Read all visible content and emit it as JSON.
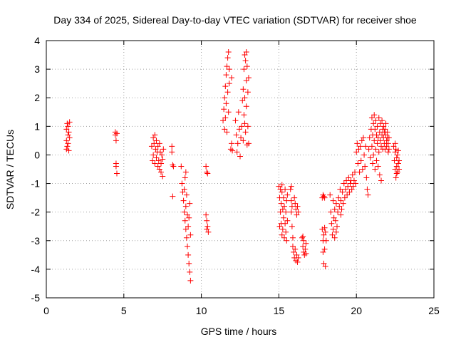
{
  "chart_data": {
    "type": "scatter",
    "title": "Day 334 of 2025, Sidereal Day-to-day VTEC variation (SDTVAR) for receiver shoe",
    "xlabel": "GPS time / hours",
    "ylabel": "SDTVAR / TECUs",
    "xlim": [
      0,
      25
    ],
    "ylim": [
      -5,
      4
    ],
    "xticks": [
      0,
      5,
      10,
      15,
      20,
      25
    ],
    "yticks": [
      -5,
      -4,
      -3,
      -2,
      -1,
      0,
      1,
      2,
      3,
      4
    ],
    "grid": true,
    "marker": "+",
    "color": "#ff0000",
    "series": [
      {
        "name": "SDTVAR",
        "points": [
          [
            1.3,
            0.2
          ],
          [
            1.3,
            0.5
          ],
          [
            1.3,
            0.9
          ],
          [
            1.35,
            1.1
          ],
          [
            1.35,
            0.3
          ],
          [
            1.4,
            0.7
          ],
          [
            1.4,
            1.0
          ],
          [
            1.4,
            0.4
          ],
          [
            1.45,
            0.8
          ],
          [
            1.45,
            0.15
          ],
          [
            1.5,
            0.6
          ],
          [
            1.5,
            1.15
          ],
          [
            4.45,
            0.8
          ],
          [
            4.45,
            0.7
          ],
          [
            4.5,
            0.5
          ],
          [
            4.5,
            -0.3
          ],
          [
            4.5,
            -0.4
          ],
          [
            4.55,
            -0.65
          ],
          [
            4.55,
            0.75
          ],
          [
            6.8,
            0.3
          ],
          [
            6.85,
            -0.2
          ],
          [
            6.9,
            0.6
          ],
          [
            6.9,
            0.0
          ],
          [
            6.95,
            0.4
          ],
          [
            7.0,
            -0.3
          ],
          [
            7.0,
            0.7
          ],
          [
            7.05,
            0.2
          ],
          [
            7.1,
            -0.1
          ],
          [
            7.1,
            0.5
          ],
          [
            7.15,
            0.1
          ],
          [
            7.2,
            -0.4
          ],
          [
            7.2,
            0.3
          ],
          [
            7.25,
            -0.2
          ],
          [
            7.3,
            0.4
          ],
          [
            7.3,
            -0.5
          ],
          [
            7.35,
            0.1
          ],
          [
            7.4,
            -0.6
          ],
          [
            7.4,
            -0.3
          ],
          [
            7.45,
            0.0
          ],
          [
            7.5,
            -0.75
          ],
          [
            7.5,
            -0.15
          ],
          [
            7.55,
            0.2
          ],
          [
            8.1,
            0.3
          ],
          [
            8.1,
            0.1
          ],
          [
            8.15,
            -0.35
          ],
          [
            8.2,
            -0.4
          ],
          [
            8.15,
            -1.45
          ],
          [
            8.7,
            -0.4
          ],
          [
            8.75,
            -1.0
          ],
          [
            8.8,
            -1.3
          ],
          [
            8.85,
            -1.6
          ],
          [
            8.9,
            -2.0
          ],
          [
            8.9,
            -1.2
          ],
          [
            8.95,
            -2.3
          ],
          [
            9.0,
            -1.8
          ],
          [
            9.0,
            -2.6
          ],
          [
            9.05,
            -1.4
          ],
          [
            9.05,
            -2.9
          ],
          [
            9.1,
            -2.1
          ],
          [
            9.1,
            -3.2
          ],
          [
            9.15,
            -2.5
          ],
          [
            9.15,
            -3.5
          ],
          [
            9.2,
            -3.8
          ],
          [
            9.2,
            -2.2
          ],
          [
            9.25,
            -4.1
          ],
          [
            9.25,
            -1.7
          ],
          [
            9.3,
            -4.4
          ],
          [
            9.3,
            -2.8
          ],
          [
            9.0,
            -0.6
          ],
          [
            8.95,
            -0.8
          ],
          [
            10.3,
            -0.4
          ],
          [
            10.35,
            -0.6
          ],
          [
            10.4,
            -0.65
          ],
          [
            10.3,
            -2.1
          ],
          [
            10.35,
            -2.3
          ],
          [
            10.4,
            -2.5
          ],
          [
            10.45,
            -2.7
          ],
          [
            10.35,
            -2.6
          ],
          [
            11.4,
            1.2
          ],
          [
            11.45,
            1.6
          ],
          [
            11.5,
            2.0
          ],
          [
            11.5,
            0.9
          ],
          [
            11.55,
            2.4
          ],
          [
            11.55,
            1.3
          ],
          [
            11.6,
            2.8
          ],
          [
            11.6,
            1.8
          ],
          [
            11.65,
            3.1
          ],
          [
            11.65,
            0.8
          ],
          [
            11.7,
            3.4
          ],
          [
            11.7,
            2.2
          ],
          [
            11.75,
            3.6
          ],
          [
            11.75,
            1.5
          ],
          [
            11.8,
            3.0
          ],
          [
            11.8,
            2.5
          ],
          [
            11.9,
            0.2
          ],
          [
            11.95,
            0.4
          ],
          [
            12.0,
            0.15
          ],
          [
            11.95,
            2.7
          ],
          [
            12.2,
            1.2
          ],
          [
            12.25,
            0.7
          ],
          [
            12.3,
            0.1
          ],
          [
            12.35,
            0.4
          ],
          [
            12.4,
            1.5
          ],
          [
            12.45,
            0.9
          ],
          [
            12.5,
            -0.05
          ],
          [
            12.55,
            0.6
          ],
          [
            12.6,
            1.0
          ],
          [
            12.65,
            1.9
          ],
          [
            12.7,
            2.3
          ],
          [
            12.7,
            0.5
          ],
          [
            12.75,
            3.0
          ],
          [
            12.75,
            1.4
          ],
          [
            12.8,
            3.5
          ],
          [
            12.8,
            2.0
          ],
          [
            12.85,
            3.3
          ],
          [
            12.85,
            0.8
          ],
          [
            12.9,
            2.6
          ],
          [
            12.9,
            1.7
          ],
          [
            12.95,
            3.1
          ],
          [
            12.95,
            0.35
          ],
          [
            13.0,
            2.2
          ],
          [
            13.0,
            1.0
          ],
          [
            13.05,
            2.7
          ],
          [
            13.05,
            0.4
          ],
          [
            12.9,
            3.6
          ],
          [
            12.8,
            1.1
          ],
          [
            15.0,
            -1.1
          ],
          [
            15.05,
            -1.5
          ],
          [
            15.1,
            -2.0
          ],
          [
            15.1,
            -1.2
          ],
          [
            15.15,
            -2.4
          ],
          [
            15.15,
            -1.7
          ],
          [
            15.2,
            -2.8
          ],
          [
            15.2,
            -1.3
          ],
          [
            15.25,
            -1.9
          ],
          [
            15.25,
            -2.6
          ],
          [
            15.3,
            -2.2
          ],
          [
            15.3,
            -1.5
          ],
          [
            15.35,
            -2.9
          ],
          [
            15.35,
            -1.8
          ],
          [
            15.4,
            -2.4
          ],
          [
            15.4,
            -1.2
          ],
          [
            15.45,
            -2.7
          ],
          [
            15.45,
            -2.0
          ],
          [
            15.5,
            -1.6
          ],
          [
            15.5,
            -3.0
          ],
          [
            15.55,
            -2.3
          ],
          [
            15.55,
            -1.4
          ],
          [
            15.05,
            -2.5
          ],
          [
            15.2,
            -1.05
          ],
          [
            15.75,
            -1.2
          ],
          [
            15.8,
            -1.6
          ],
          [
            15.8,
            -2.0
          ],
          [
            15.85,
            -2.5
          ],
          [
            15.85,
            -1.8
          ],
          [
            15.9,
            -2.9
          ],
          [
            15.9,
            -3.2
          ],
          [
            15.95,
            -3.4
          ],
          [
            16.0,
            -3.6
          ],
          [
            16.0,
            -1.5
          ],
          [
            16.05,
            -3.3
          ],
          [
            16.05,
            -1.7
          ],
          [
            16.1,
            -3.7
          ],
          [
            16.1,
            -1.9
          ],
          [
            16.15,
            -3.5
          ],
          [
            16.15,
            -2.1
          ],
          [
            16.2,
            -3.75
          ],
          [
            16.2,
            -1.8
          ],
          [
            16.25,
            -3.6
          ],
          [
            16.25,
            -2.0
          ],
          [
            15.8,
            -1.1
          ],
          [
            16.5,
            -2.9
          ],
          [
            16.55,
            -3.2
          ],
          [
            16.6,
            -3.4
          ],
          [
            16.6,
            -3.0
          ],
          [
            16.65,
            -3.5
          ],
          [
            16.7,
            -3.3
          ],
          [
            16.75,
            -3.1
          ],
          [
            16.75,
            -3.45
          ],
          [
            16.55,
            -2.85
          ],
          [
            17.8,
            -1.5
          ],
          [
            17.85,
            -1.4
          ],
          [
            17.9,
            -1.45
          ],
          [
            17.95,
            -1.5
          ],
          [
            17.8,
            -2.6
          ],
          [
            17.85,
            -3.0
          ],
          [
            17.85,
            -3.4
          ],
          [
            17.9,
            -2.8
          ],
          [
            17.9,
            -3.8
          ],
          [
            17.95,
            -3.3
          ],
          [
            18.0,
            -2.7
          ],
          [
            18.0,
            -3.9
          ],
          [
            18.05,
            -3.0
          ],
          [
            17.95,
            -2.55
          ],
          [
            18.3,
            -1.4
          ],
          [
            18.35,
            -2.0
          ],
          [
            18.4,
            -2.4
          ],
          [
            18.45,
            -2.8
          ],
          [
            18.5,
            -2.6
          ],
          [
            18.55,
            -2.2
          ],
          [
            18.6,
            -2.9
          ],
          [
            18.6,
            -1.9
          ],
          [
            18.65,
            -2.3
          ],
          [
            18.7,
            -1.7
          ],
          [
            18.75,
            -2.5
          ],
          [
            18.8,
            -2.0
          ],
          [
            18.85,
            -1.5
          ],
          [
            18.9,
            -1.8
          ],
          [
            18.95,
            -1.2
          ],
          [
            19.0,
            -1.6
          ],
          [
            19.05,
            -1.9
          ],
          [
            19.1,
            -1.3
          ],
          [
            19.15,
            -1.7
          ],
          [
            19.2,
            -1.0
          ],
          [
            19.25,
            -1.5
          ],
          [
            19.3,
            -1.2
          ],
          [
            19.35,
            -0.9
          ],
          [
            19.4,
            -1.4
          ],
          [
            19.45,
            -1.1
          ],
          [
            19.5,
            -0.8
          ],
          [
            19.55,
            -1.3
          ],
          [
            19.6,
            -1.0
          ],
          [
            19.65,
            -0.9
          ],
          [
            19.7,
            -1.2
          ],
          [
            19.75,
            -0.7
          ],
          [
            19.8,
            -1.1
          ],
          [
            19.85,
            -0.9
          ],
          [
            19.9,
            -0.6
          ],
          [
            19.95,
            -1.0
          ],
          [
            18.5,
            -1.6
          ],
          [
            18.7,
            -2.7
          ],
          [
            19.0,
            -2.1
          ],
          [
            20.0,
            0.1
          ],
          [
            20.05,
            0.4
          ],
          [
            20.1,
            -0.3
          ],
          [
            20.15,
            0.2
          ],
          [
            20.2,
            -0.6
          ],
          [
            20.25,
            0.3
          ],
          [
            20.3,
            -0.2
          ],
          [
            20.35,
            0.5
          ],
          [
            20.4,
            -0.5
          ],
          [
            20.45,
            0.6
          ],
          [
            20.5,
            0.0
          ],
          [
            20.55,
            -0.4
          ],
          [
            20.6,
            0.3
          ],
          [
            20.65,
            -0.8
          ],
          [
            20.7,
            -1.2
          ],
          [
            20.75,
            -1.4
          ],
          [
            20.8,
            0.2
          ],
          [
            20.85,
            0.6
          ],
          [
            20.9,
            -0.1
          ],
          [
            20.95,
            0.9
          ],
          [
            21.0,
            0.3
          ],
          [
            21.0,
            1.3
          ],
          [
            21.05,
            -0.3
          ],
          [
            21.05,
            0.7
          ],
          [
            21.1,
            1.1
          ],
          [
            21.1,
            0.0
          ],
          [
            21.15,
            1.4
          ],
          [
            21.15,
            0.5
          ],
          [
            21.2,
            0.9
          ],
          [
            21.2,
            -0.5
          ],
          [
            21.25,
            1.2
          ],
          [
            21.25,
            0.2
          ],
          [
            21.3,
            0.7
          ],
          [
            21.3,
            -0.2
          ],
          [
            21.35,
            1.0
          ],
          [
            21.35,
            0.4
          ],
          [
            21.4,
            0.6
          ],
          [
            21.4,
            -0.4
          ],
          [
            21.45,
            1.3
          ],
          [
            21.45,
            0.1
          ],
          [
            21.5,
            0.8
          ],
          [
            21.5,
            -0.7
          ],
          [
            21.55,
            0.5
          ],
          [
            21.55,
            1.1
          ],
          [
            21.6,
            0.3
          ],
          [
            21.6,
            -0.9
          ],
          [
            21.65,
            0.7
          ],
          [
            21.65,
            1.2
          ],
          [
            21.7,
            0.2
          ],
          [
            21.7,
            0.9
          ],
          [
            21.75,
            0.6
          ],
          [
            21.75,
            1.0
          ],
          [
            21.8,
            0.4
          ],
          [
            21.8,
            0.8
          ],
          [
            21.85,
            0.9
          ],
          [
            21.85,
            0.2
          ],
          [
            21.9,
            0.7
          ],
          [
            21.9,
            1.1
          ],
          [
            21.95,
            0.5
          ],
          [
            21.95,
            0.3
          ],
          [
            22.0,
            0.8
          ],
          [
            22.0,
            0.6
          ],
          [
            22.05,
            0.4
          ],
          [
            22.05,
            0.1
          ],
          [
            22.1,
            0.6
          ],
          [
            22.1,
            0.2
          ],
          [
            22.4,
            0.3
          ],
          [
            22.45,
            -0.2
          ],
          [
            22.5,
            0.1
          ],
          [
            22.5,
            -0.5
          ],
          [
            22.55,
            0.2
          ],
          [
            22.55,
            -0.8
          ],
          [
            22.6,
            -0.1
          ],
          [
            22.6,
            -0.4
          ],
          [
            22.65,
            0.0
          ],
          [
            22.65,
            -0.6
          ],
          [
            22.7,
            0.15
          ],
          [
            22.7,
            -0.3
          ],
          [
            22.75,
            -0.2
          ],
          [
            22.75,
            -0.5
          ],
          [
            22.5,
            0.4
          ],
          [
            22.6,
            -0.65
          ]
        ]
      }
    ]
  }
}
